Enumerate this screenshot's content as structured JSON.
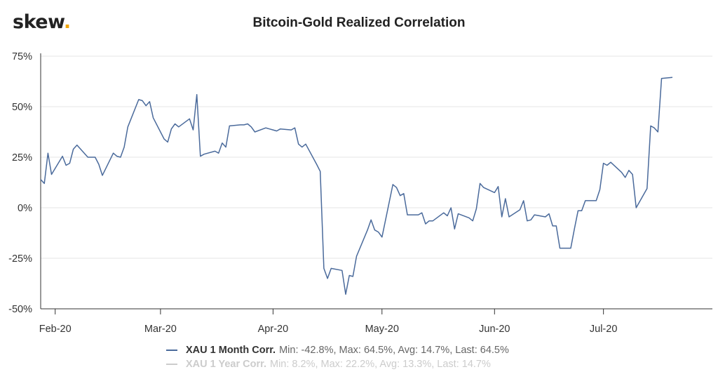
{
  "logo": {
    "text": "skew",
    "dot": "."
  },
  "chart_data": {
    "type": "line",
    "title": "Bitcoin-Gold Realized Correlation",
    "xlabel": "",
    "ylabel": "",
    "x_range": [
      "2020-01-28",
      "2020-07-31"
    ],
    "ylim": [
      -50,
      75
    ],
    "y_ticks": [
      -50,
      -25,
      0,
      25,
      50,
      75
    ],
    "y_tick_labels": [
      "-50%",
      "-25%",
      "0%",
      "25%",
      "50%",
      "75%"
    ],
    "x_ticks": [
      {
        "date": "2020-02-01",
        "label": "Feb-20"
      },
      {
        "date": "2020-03-01",
        "label": "Mar-20"
      },
      {
        "date": "2020-04-01",
        "label": "Apr-20"
      },
      {
        "date": "2020-05-01",
        "label": "May-20"
      },
      {
        "date": "2020-06-01",
        "label": "Jun-20"
      },
      {
        "date": "2020-07-01",
        "label": "Jul-20"
      }
    ],
    "grid": {
      "horizontal": true,
      "vertical": false
    },
    "legend_position": "bottom",
    "series": [
      {
        "name": "XAU 1 Month Corr.",
        "color": "#4a6a9b",
        "visible": true,
        "stats": "Min: -42.8%, Max: 64.5%, Avg: 14.7%, Last: 64.5%",
        "points": [
          [
            "2020-01-28",
            14
          ],
          [
            "2020-01-29",
            12
          ],
          [
            "2020-01-30",
            27
          ],
          [
            "2020-01-31",
            16.5
          ],
          [
            "2020-02-03",
            25.5
          ],
          [
            "2020-02-04",
            21
          ],
          [
            "2020-02-05",
            22
          ],
          [
            "2020-02-06",
            29
          ],
          [
            "2020-02-07",
            31
          ],
          [
            "2020-02-10",
            25
          ],
          [
            "2020-02-11",
            25
          ],
          [
            "2020-02-12",
            25
          ],
          [
            "2020-02-13",
            21.5
          ],
          [
            "2020-02-14",
            16
          ],
          [
            "2020-02-17",
            27
          ],
          [
            "2020-02-18",
            25.5
          ],
          [
            "2020-02-19",
            25
          ],
          [
            "2020-02-20",
            30
          ],
          [
            "2020-02-21",
            40
          ],
          [
            "2020-02-24",
            53.5
          ],
          [
            "2020-02-25",
            53
          ],
          [
            "2020-02-26",
            50.5
          ],
          [
            "2020-02-27",
            52.5
          ],
          [
            "2020-02-28",
            44.5
          ],
          [
            "2020-03-02",
            34
          ],
          [
            "2020-03-03",
            32.5
          ],
          [
            "2020-03-04",
            39
          ],
          [
            "2020-03-05",
            41.5
          ],
          [
            "2020-03-06",
            40
          ],
          [
            "2020-03-09",
            44
          ],
          [
            "2020-03-10",
            38.5
          ],
          [
            "2020-03-11",
            56
          ],
          [
            "2020-03-12",
            25.5
          ],
          [
            "2020-03-13",
            26.5
          ],
          [
            "2020-03-16",
            28
          ],
          [
            "2020-03-17",
            27
          ],
          [
            "2020-03-18",
            32
          ],
          [
            "2020-03-19",
            30
          ],
          [
            "2020-03-20",
            40.5
          ],
          [
            "2020-03-23",
            41
          ],
          [
            "2020-03-24",
            41
          ],
          [
            "2020-03-25",
            41.5
          ],
          [
            "2020-03-26",
            40
          ],
          [
            "2020-03-27",
            37.5
          ],
          [
            "2020-03-30",
            39.5
          ],
          [
            "2020-03-31",
            39
          ],
          [
            "2020-04-01",
            38.5
          ],
          [
            "2020-04-02",
            38
          ],
          [
            "2020-04-03",
            39
          ],
          [
            "2020-04-06",
            38.5
          ],
          [
            "2020-04-07",
            39.5
          ],
          [
            "2020-04-08",
            31.5
          ],
          [
            "2020-04-09",
            30
          ],
          [
            "2020-04-10",
            31.5
          ],
          [
            "2020-04-13",
            21.5
          ],
          [
            "2020-04-14",
            18
          ],
          [
            "2020-04-15",
            -30
          ],
          [
            "2020-04-16",
            -35
          ],
          [
            "2020-04-17",
            -30
          ],
          [
            "2020-04-20",
            -31
          ],
          [
            "2020-04-21",
            -42.8
          ],
          [
            "2020-04-22",
            -33.5
          ],
          [
            "2020-04-23",
            -34
          ],
          [
            "2020-04-24",
            -24
          ],
          [
            "2020-04-27",
            -11
          ],
          [
            "2020-04-28",
            -6
          ],
          [
            "2020-04-29",
            -11
          ],
          [
            "2020-04-30",
            -12
          ],
          [
            "2020-05-01",
            -14.5
          ],
          [
            "2020-05-04",
            11.5
          ],
          [
            "2020-05-05",
            10
          ],
          [
            "2020-05-06",
            6
          ],
          [
            "2020-05-07",
            7
          ],
          [
            "2020-05-08",
            -3.5
          ],
          [
            "2020-05-11",
            -3.5
          ],
          [
            "2020-05-12",
            -2.5
          ],
          [
            "2020-05-13",
            -8
          ],
          [
            "2020-05-14",
            -6.5
          ],
          [
            "2020-05-15",
            -6.5
          ],
          [
            "2020-05-18",
            -2.5
          ],
          [
            "2020-05-19",
            -4
          ],
          [
            "2020-05-20",
            0
          ],
          [
            "2020-05-21",
            -10.5
          ],
          [
            "2020-05-22",
            -3
          ],
          [
            "2020-05-25",
            -5
          ],
          [
            "2020-05-26",
            -6.5
          ],
          [
            "2020-05-27",
            -0.5
          ],
          [
            "2020-05-28",
            12
          ],
          [
            "2020-05-29",
            10
          ],
          [
            "2020-06-01",
            7.5
          ],
          [
            "2020-06-02",
            10.5
          ],
          [
            "2020-06-03",
            -4.5
          ],
          [
            "2020-06-04",
            4.5
          ],
          [
            "2020-06-05",
            -4.5
          ],
          [
            "2020-06-08",
            -1
          ],
          [
            "2020-06-09",
            3.5
          ],
          [
            "2020-06-10",
            -6.5
          ],
          [
            "2020-06-11",
            -6
          ],
          [
            "2020-06-12",
            -3.5
          ],
          [
            "2020-06-15",
            -4.5
          ],
          [
            "2020-06-16",
            -3
          ],
          [
            "2020-06-17",
            -9
          ],
          [
            "2020-06-18",
            -9
          ],
          [
            "2020-06-19",
            -20
          ],
          [
            "2020-06-22",
            -20
          ],
          [
            "2020-06-23",
            -10.5
          ],
          [
            "2020-06-24",
            -1.5
          ],
          [
            "2020-06-25",
            -1.5
          ],
          [
            "2020-06-26",
            3.5
          ],
          [
            "2020-06-29",
            3.5
          ],
          [
            "2020-06-30",
            9
          ],
          [
            "2020-07-01",
            22
          ],
          [
            "2020-07-02",
            21
          ],
          [
            "2020-07-03",
            22.5
          ],
          [
            "2020-07-06",
            17.5
          ],
          [
            "2020-07-07",
            15
          ],
          [
            "2020-07-08",
            18.5
          ],
          [
            "2020-07-09",
            16.5
          ],
          [
            "2020-07-10",
            0
          ],
          [
            "2020-07-13",
            9.5
          ],
          [
            "2020-07-14",
            40.5
          ],
          [
            "2020-07-15",
            39.5
          ],
          [
            "2020-07-16",
            37.5
          ],
          [
            "2020-07-17",
            64
          ],
          [
            "2020-07-20",
            64.5
          ]
        ]
      },
      {
        "name": "XAU 1 Year Corr.",
        "color": "#cccccc",
        "visible": false,
        "stats": "Min: 8.2%, Max: 22.2%, Avg: 13.3%, Last: 14.7%",
        "points": []
      }
    ]
  }
}
